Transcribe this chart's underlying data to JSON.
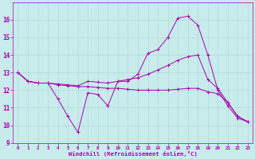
{
  "xlabel": "Windchill (Refroidissement éolien,°C)",
  "background_color": "#c8ecec",
  "grid_color": "#b0d8d8",
  "line_color": "#aa00aa",
  "x_ticks": [
    0,
    1,
    2,
    3,
    4,
    5,
    6,
    7,
    8,
    9,
    10,
    11,
    12,
    13,
    14,
    15,
    16,
    17,
    18,
    19,
    20,
    21,
    22,
    23
  ],
  "ylim": [
    9,
    17
  ],
  "xlim": [
    -0.5,
    23.5
  ],
  "yticks": [
    9,
    10,
    11,
    12,
    13,
    14,
    15,
    16
  ],
  "series1_x": [
    0,
    1,
    2,
    3,
    4,
    5,
    6,
    7,
    8,
    9,
    10,
    11,
    12,
    13,
    14,
    15,
    16,
    17,
    18,
    19,
    20,
    21,
    22,
    23
  ],
  "series1_y": [
    13.0,
    12.5,
    12.4,
    12.4,
    11.5,
    10.5,
    9.6,
    11.85,
    11.75,
    11.1,
    12.5,
    12.5,
    12.9,
    14.1,
    14.3,
    15.0,
    16.1,
    16.2,
    15.7,
    14.0,
    12.0,
    11.1,
    10.4,
    10.2
  ],
  "series2_x": [
    0,
    1,
    2,
    3,
    4,
    5,
    6,
    7,
    8,
    9,
    10,
    11,
    12,
    13,
    14,
    15,
    16,
    17,
    18,
    19,
    20,
    21,
    22,
    23
  ],
  "series2_y": [
    13.0,
    12.5,
    12.4,
    12.4,
    12.35,
    12.3,
    12.25,
    12.5,
    12.45,
    12.4,
    12.5,
    12.6,
    12.7,
    12.9,
    13.15,
    13.4,
    13.7,
    13.9,
    14.0,
    12.6,
    12.1,
    11.3,
    10.5,
    10.2
  ],
  "series3_x": [
    0,
    1,
    2,
    3,
    4,
    5,
    6,
    7,
    8,
    9,
    10,
    11,
    12,
    13,
    14,
    15,
    16,
    17,
    18,
    19,
    20,
    21,
    22,
    23
  ],
  "series3_y": [
    13.0,
    12.5,
    12.4,
    12.4,
    12.3,
    12.25,
    12.2,
    12.2,
    12.15,
    12.1,
    12.1,
    12.05,
    12.0,
    12.0,
    12.0,
    12.0,
    12.05,
    12.1,
    12.1,
    11.9,
    11.8,
    11.3,
    10.5,
    10.2
  ]
}
